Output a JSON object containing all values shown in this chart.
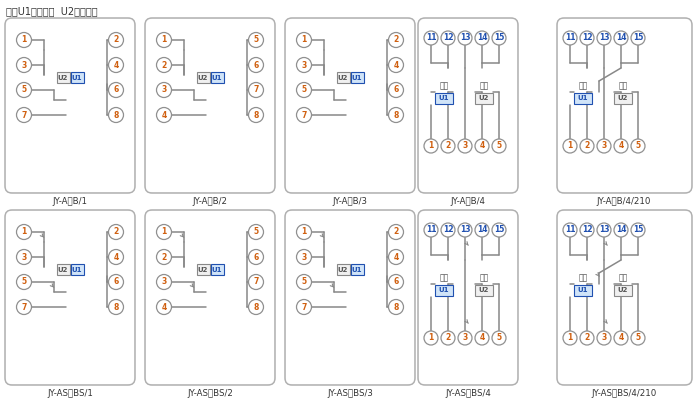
{
  "title_note": "注：U1辅助电源  U2整定电压",
  "bg_color": "#ffffff",
  "border_color": "#b0b0b0",
  "line_color": "#888888",
  "orange_color": "#d06010",
  "blue_color": "#2050b0",
  "labels_row1": [
    "JY-A，B/1",
    "JY-A，B/2",
    "JY-A，B/3",
    "JY-A，B/4",
    "JY-A，B/4/210"
  ],
  "labels_row2": [
    "JY-AS，BS/1",
    "JY-AS，BS/2",
    "JY-AS，BS/3",
    "JY-AS，BS/4",
    "JY-AS，BS/4/210"
  ]
}
